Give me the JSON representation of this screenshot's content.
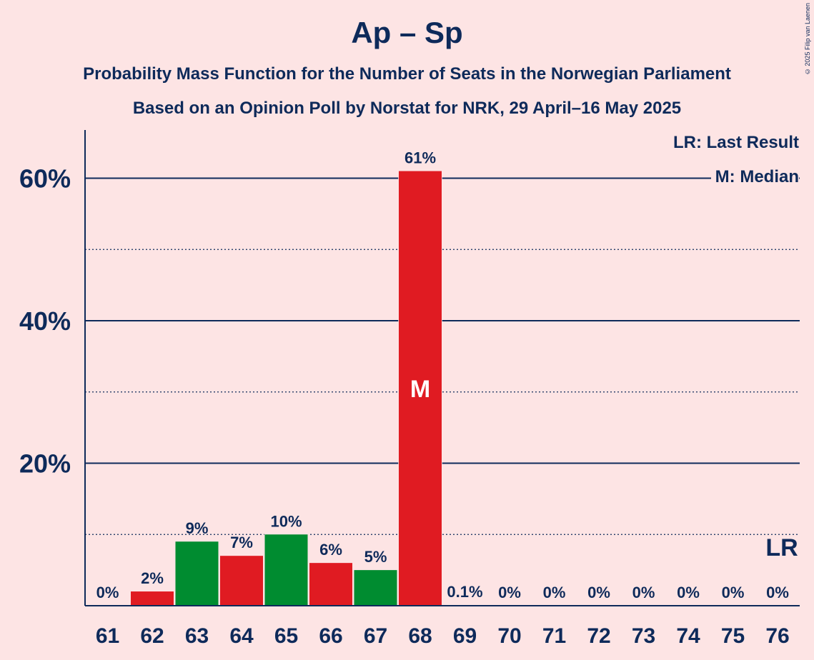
{
  "chart_data": {
    "type": "bar",
    "title": "Ap – Sp",
    "subtitle": "Probability Mass Function for the Number of Seats in the Norwegian Parliament",
    "subtitle2": "Based on an Opinion Poll by Norstat for NRK, 29 April–16 May 2025",
    "copyright": "© 2025 Filip van Laenen",
    "legend": [
      "LR: Last Result",
      "M: Median"
    ],
    "legend_placement": "top-right",
    "ylim": [
      0,
      66
    ],
    "yticks": [
      20,
      40,
      60
    ],
    "ytick_labels": [
      "20%",
      "40%",
      "60%"
    ],
    "grid": {
      "solid": [
        20,
        40,
        60
      ],
      "dotted": [
        10,
        30,
        50
      ]
    },
    "categories": [
      "61",
      "62",
      "63",
      "64",
      "65",
      "66",
      "67",
      "68",
      "69",
      "70",
      "71",
      "72",
      "73",
      "74",
      "75",
      "76"
    ],
    "values": [
      0,
      2,
      9,
      7,
      10,
      6,
      5,
      61,
      0.1,
      0,
      0,
      0,
      0,
      0,
      0,
      0
    ],
    "labels": [
      "0%",
      "2%",
      "9%",
      "7%",
      "10%",
      "6%",
      "5%",
      "61%",
      "0.1%",
      "0%",
      "0%",
      "0%",
      "0%",
      "0%",
      "0%",
      "0%"
    ],
    "bar_colors": [
      "#e01b22",
      "#e01b22",
      "#008c30",
      "#e01b22",
      "#008c30",
      "#e01b22",
      "#008c30",
      "#e01b22",
      "#e01b22",
      "#e01b22",
      "#e01b22",
      "#e01b22",
      "#e01b22",
      "#e01b22",
      "#e01b22",
      "#e01b22"
    ],
    "median_seat": "68",
    "median_marker": "M",
    "last_result_seat": "76",
    "last_result_marker": "LR"
  }
}
